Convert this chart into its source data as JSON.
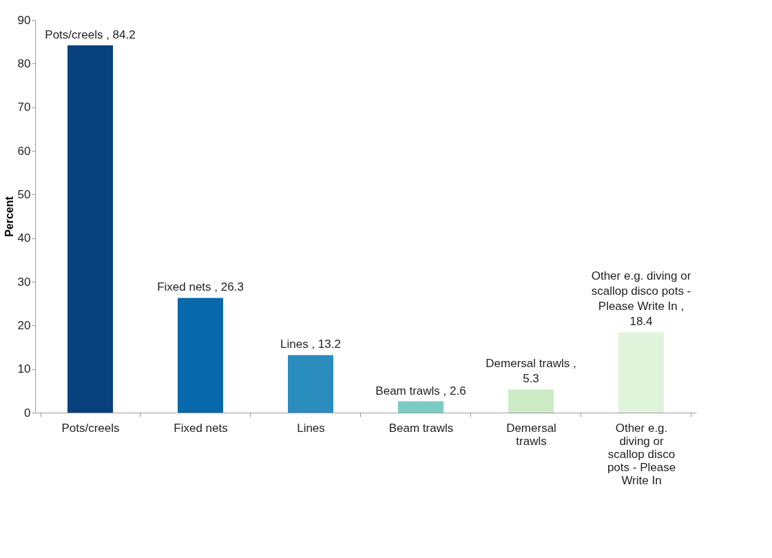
{
  "chart_data": {
    "type": "bar",
    "ylabel": "Percent",
    "categories": [
      "Pots/creels",
      "Fixed nets",
      "Lines",
      "Beam trawls",
      "Demersal trawls",
      "Other e.g. diving or scallop disco pots - Please Write In"
    ],
    "values": [
      84.2,
      26.3,
      13.2,
      2.6,
      5.3,
      18.4
    ],
    "colors": [
      "#08407e",
      "#0868ac",
      "#2b8cbe",
      "#7bccc4",
      "#ccebc5",
      "#e0f3db"
    ],
    "value_labels": [
      "Pots/creels , 84.2",
      "Fixed nets , 26.3",
      "Lines , 13.2",
      "Beam trawls , 2.6",
      "Demersal trawls , 5.3",
      "Other e.g. diving or scallop disco pots - Please Write In , 18.4"
    ],
    "ylim": [
      0,
      90
    ],
    "yticks": [
      0,
      10,
      20,
      30,
      40,
      50,
      60,
      70,
      80,
      90
    ],
    "grid": false
  }
}
